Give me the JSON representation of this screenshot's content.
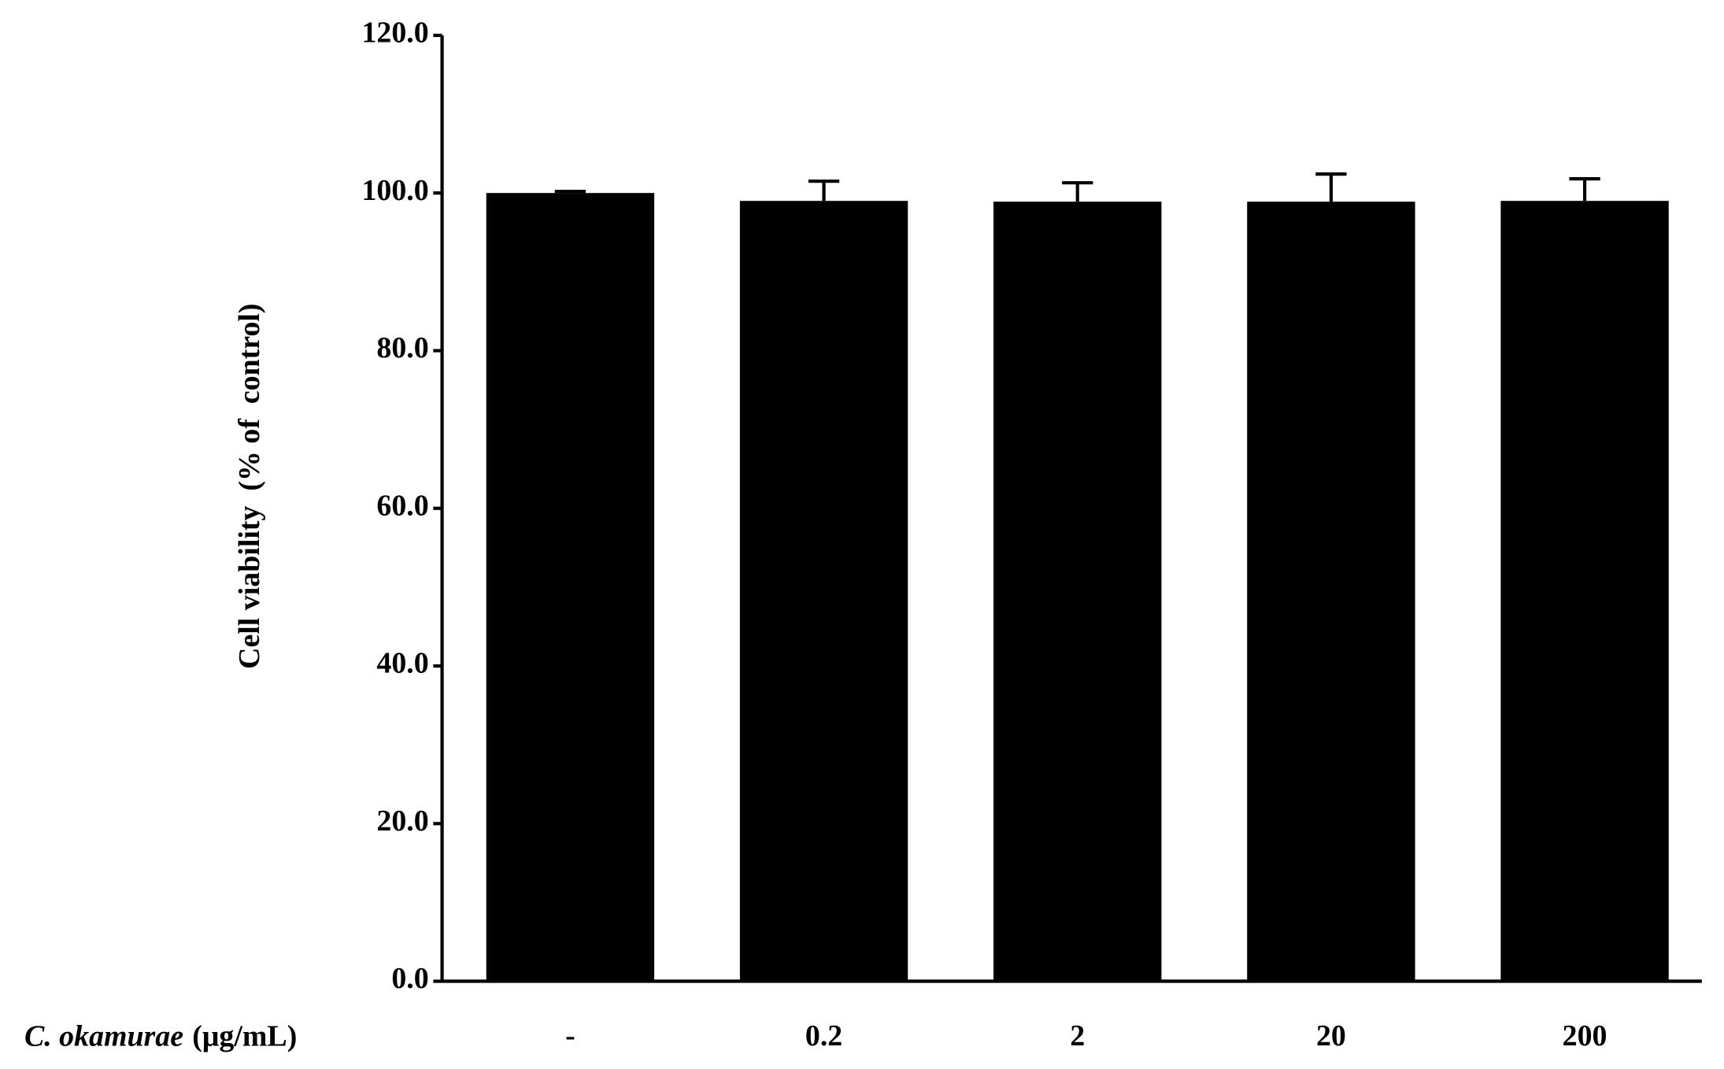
{
  "chart_data": {
    "type": "bar",
    "ylabel": "Cell viability  (% of  control)",
    "xlabel": [
      "C. okamurae",
      "(μg/mL)"
    ],
    "categories": [
      "-",
      "0.2",
      "2",
      "20",
      "200"
    ],
    "values": [
      100.0,
      99.0,
      98.9,
      98.9,
      99.0
    ],
    "errors": [
      0.2,
      2.5,
      2.4,
      3.5,
      2.8
    ],
    "color": "#000000",
    "ylim": [
      0,
      120
    ],
    "yticks": [
      {
        "value": 0,
        "label": "0.0"
      },
      {
        "value": 20,
        "label": "20.0"
      },
      {
        "value": 40,
        "label": "40.0"
      },
      {
        "value": 60,
        "label": "60.0"
      },
      {
        "value": 80,
        "label": "80.0"
      },
      {
        "value": 100,
        "label": "100.0"
      },
      {
        "value": 120,
        "label": "120.0"
      }
    ],
    "grid": false
  }
}
